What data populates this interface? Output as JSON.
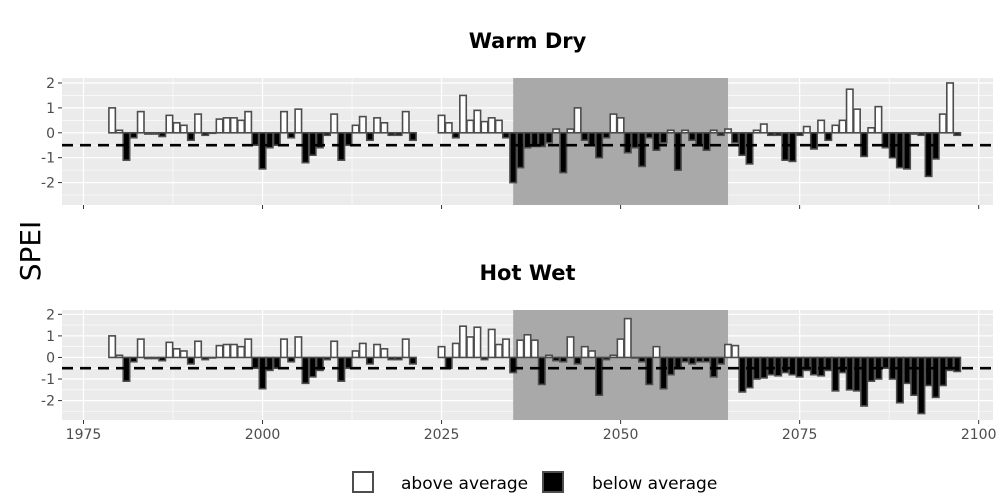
{
  "colors": {
    "panel_background": "#ebebeb",
    "grid": "#ffffff",
    "highlight_period": "#a9a9a9",
    "above_fill": "#ffffff",
    "below_fill": "#000000",
    "bar_outline": "#4d4d4d",
    "threshold_line": "#000000"
  },
  "chart_data": {
    "type": "bar",
    "ylabel": "SPEI",
    "xlim": [
      1972,
      2102
    ],
    "ylim": [
      -2.9,
      2.2
    ],
    "x_ticks": [
      1975,
      2000,
      2025,
      2050,
      2075,
      2100
    ],
    "x_tick_labels": [
      "1975",
      "2000",
      "2025",
      "2050",
      "2075",
      "2100"
    ],
    "y_ticks": [
      -2,
      -1,
      0,
      1,
      2
    ],
    "y_tick_labels": [
      "-2",
      "-1",
      "0",
      "1",
      "2"
    ],
    "threshold": -0.5,
    "threshold_style": "dashed",
    "grid": true,
    "legend": {
      "position": "bottom",
      "items": [
        {
          "label": "above average",
          "fill": "#ffffff"
        },
        {
          "label": "below average",
          "fill": "#000000"
        }
      ]
    },
    "panels": [
      {
        "title": "Warm Dry",
        "highlight_period": [
          2035,
          2065
        ],
        "years_start": 1979,
        "values": [
          1.0,
          0.1,
          -1.1,
          -0.2,
          0.85,
          -0.05,
          -0.05,
          -0.15,
          0.7,
          0.4,
          0.3,
          -0.3,
          0.75,
          -0.1,
          0.0,
          0.55,
          0.6,
          0.6,
          0.5,
          0.85,
          -0.5,
          -1.45,
          -0.6,
          -0.5,
          0.85,
          -0.2,
          0.95,
          -1.2,
          -0.9,
          -0.6,
          -0.1,
          0.75,
          -1.1,
          -0.5,
          0.3,
          0.65,
          -0.3,
          0.6,
          0.4,
          -0.1,
          -0.1,
          0.85,
          -0.3,
          null,
          null,
          null,
          0.7,
          0.4,
          -0.2,
          1.5,
          0.5,
          0.9,
          0.45,
          0.6,
          0.5,
          -0.2,
          -2.0,
          -1.4,
          -0.6,
          -0.55,
          -0.55,
          -0.4,
          0.15,
          -1.6,
          0.15,
          1.0,
          -0.3,
          -0.5,
          -1.0,
          -0.2,
          0.75,
          0.6,
          -0.8,
          -0.6,
          -1.35,
          -0.2,
          -0.7,
          -0.4,
          0.1,
          -1.5,
          0.1,
          -0.3,
          -0.5,
          -0.7,
          0.1,
          -0.1,
          0.15,
          -0.4,
          -0.9,
          -1.25,
          0.1,
          0.35,
          -0.1,
          -0.1,
          -1.1,
          -1.15,
          -0.1,
          0.25,
          -0.65,
          0.5,
          -0.3,
          0.3,
          0.5,
          1.75,
          0.95,
          -0.95,
          0.2,
          1.05,
          -0.6,
          -1.0,
          -1.4,
          -1.45,
          -0.05,
          -0.1,
          -1.75,
          -1.05,
          0.75,
          2.0,
          -0.1
        ]
      },
      {
        "title": "Hot Wet",
        "highlight_period": [
          2035,
          2065
        ],
        "years_start": 1979,
        "values": [
          1.0,
          0.1,
          -1.1,
          -0.2,
          0.85,
          -0.05,
          -0.05,
          -0.15,
          0.7,
          0.4,
          0.3,
          -0.3,
          0.75,
          -0.1,
          0.0,
          0.55,
          0.6,
          0.6,
          0.5,
          0.85,
          -0.5,
          -1.45,
          -0.6,
          -0.5,
          0.85,
          -0.2,
          0.95,
          -1.2,
          -0.9,
          -0.6,
          -0.1,
          0.75,
          -1.1,
          -0.5,
          0.3,
          0.65,
          -0.3,
          0.6,
          0.4,
          -0.1,
          -0.1,
          0.85,
          -0.3,
          null,
          null,
          null,
          0.5,
          -0.5,
          0.65,
          1.45,
          0.95,
          1.4,
          -0.1,
          1.3,
          0.6,
          0.85,
          -0.7,
          0.8,
          1.05,
          0.8,
          -1.25,
          0.1,
          -0.15,
          -0.2,
          0.95,
          -0.3,
          0.5,
          0.3,
          -1.75,
          -0.1,
          0.1,
          0.85,
          1.8,
          0.0,
          -0.2,
          -1.25,
          0.5,
          -1.45,
          -0.8,
          -0.5,
          -0.2,
          -0.3,
          -0.2,
          -0.2,
          -0.9,
          -0.3,
          0.6,
          0.55,
          -1.6,
          -1.4,
          -1.0,
          -0.95,
          -0.8,
          -0.85,
          -0.7,
          -0.8,
          -0.9,
          -0.6,
          -0.8,
          -0.85,
          -0.6,
          -1.55,
          -0.7,
          -1.5,
          -1.55,
          -2.25,
          -1.1,
          -1.0,
          -0.5,
          -1.0,
          -2.1,
          -1.2,
          -1.75,
          -2.6,
          -1.3,
          -1.85,
          -1.3,
          -0.6,
          -0.65
        ]
      }
    ]
  }
}
